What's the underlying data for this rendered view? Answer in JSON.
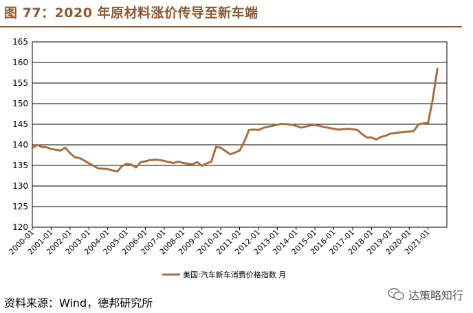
{
  "header": {
    "title": "图 77：2020 年原材料涨价传导至新车端"
  },
  "footer": {
    "source": "资料来源：Wind，德邦研究所"
  },
  "watermark": {
    "text": "达策略知行",
    "icon": "wechat-icon"
  },
  "colors": {
    "line": "#A86E3E",
    "title": "#8B5A33",
    "grid": "#000000"
  },
  "chart_data": {
    "type": "line",
    "title": "",
    "xlabel": "",
    "ylabel": "",
    "ylim": [
      120,
      165
    ],
    "yticks": [
      120,
      125,
      130,
      135,
      140,
      145,
      150,
      155,
      160,
      165
    ],
    "xtick_labels": [
      "2000-01",
      "2001-01",
      "2002-01",
      "2003-01",
      "2004-01",
      "2005-01",
      "2006-01",
      "2007-01",
      "2008-01",
      "2009-01",
      "2010-01",
      "2011-01",
      "2012-01",
      "2013-01",
      "2014-01",
      "2015-01",
      "2016-01",
      "2017-01",
      "2018-01",
      "2019-01",
      "2020-01",
      "2021-01"
    ],
    "grid": "horizontal",
    "legend_position": "bottom-center",
    "series": [
      {
        "name": "美国:汽车新车消费价格指数 月",
        "x": [
          "2000-01",
          "2000-04",
          "2000-07",
          "2000-10",
          "2001-01",
          "2001-04",
          "2001-07",
          "2001-10",
          "2002-01",
          "2002-04",
          "2002-07",
          "2002-10",
          "2003-01",
          "2003-04",
          "2003-07",
          "2003-10",
          "2004-01",
          "2004-04",
          "2004-07",
          "2004-10",
          "2005-01",
          "2005-04",
          "2005-07",
          "2005-10",
          "2006-01",
          "2006-04",
          "2006-07",
          "2006-10",
          "2007-01",
          "2007-04",
          "2007-07",
          "2007-10",
          "2008-01",
          "2008-04",
          "2008-07",
          "2008-10",
          "2009-01",
          "2009-04",
          "2009-07",
          "2009-10",
          "2010-01",
          "2010-04",
          "2010-07",
          "2010-10",
          "2011-01",
          "2011-04",
          "2011-07",
          "2011-10",
          "2012-01",
          "2012-04",
          "2012-07",
          "2012-10",
          "2013-01",
          "2013-04",
          "2013-07",
          "2013-10",
          "2014-01",
          "2014-04",
          "2014-07",
          "2014-10",
          "2015-01",
          "2015-04",
          "2015-07",
          "2015-10",
          "2016-01",
          "2016-04",
          "2016-07",
          "2016-10",
          "2017-01",
          "2017-04",
          "2017-07",
          "2017-10",
          "2018-01",
          "2018-04",
          "2018-07",
          "2018-10",
          "2019-01",
          "2019-04",
          "2019-07",
          "2019-10",
          "2020-01",
          "2020-04",
          "2020-07",
          "2020-10",
          "2021-01",
          "2021-04",
          "2021-07"
        ],
        "values": [
          139.2,
          140.0,
          139.5,
          139.4,
          139.0,
          138.8,
          138.6,
          139.3,
          138.0,
          137.0,
          136.8,
          136.2,
          135.5,
          134.9,
          134.3,
          134.2,
          134.1,
          133.8,
          133.5,
          134.8,
          135.4,
          135.2,
          134.5,
          135.8,
          136.0,
          136.3,
          136.4,
          136.3,
          136.1,
          135.8,
          135.6,
          135.9,
          135.6,
          135.4,
          135.3,
          135.8,
          134.9,
          135.5,
          135.9,
          139.5,
          139.3,
          138.5,
          137.7,
          138.1,
          138.6,
          140.8,
          143.6,
          143.7,
          143.6,
          144.1,
          144.4,
          144.6,
          144.9,
          145.1,
          145.0,
          144.9,
          144.6,
          144.2,
          144.4,
          144.7,
          144.8,
          144.6,
          144.3,
          144.1,
          143.9,
          143.7,
          143.8,
          143.9,
          143.8,
          143.6,
          142.6,
          141.8,
          141.8,
          141.3,
          141.9,
          142.2,
          142.7,
          142.9,
          143.0,
          143.1,
          143.2,
          143.4,
          145.0,
          145.2,
          145.3,
          151.0,
          158.5
        ]
      }
    ]
  }
}
